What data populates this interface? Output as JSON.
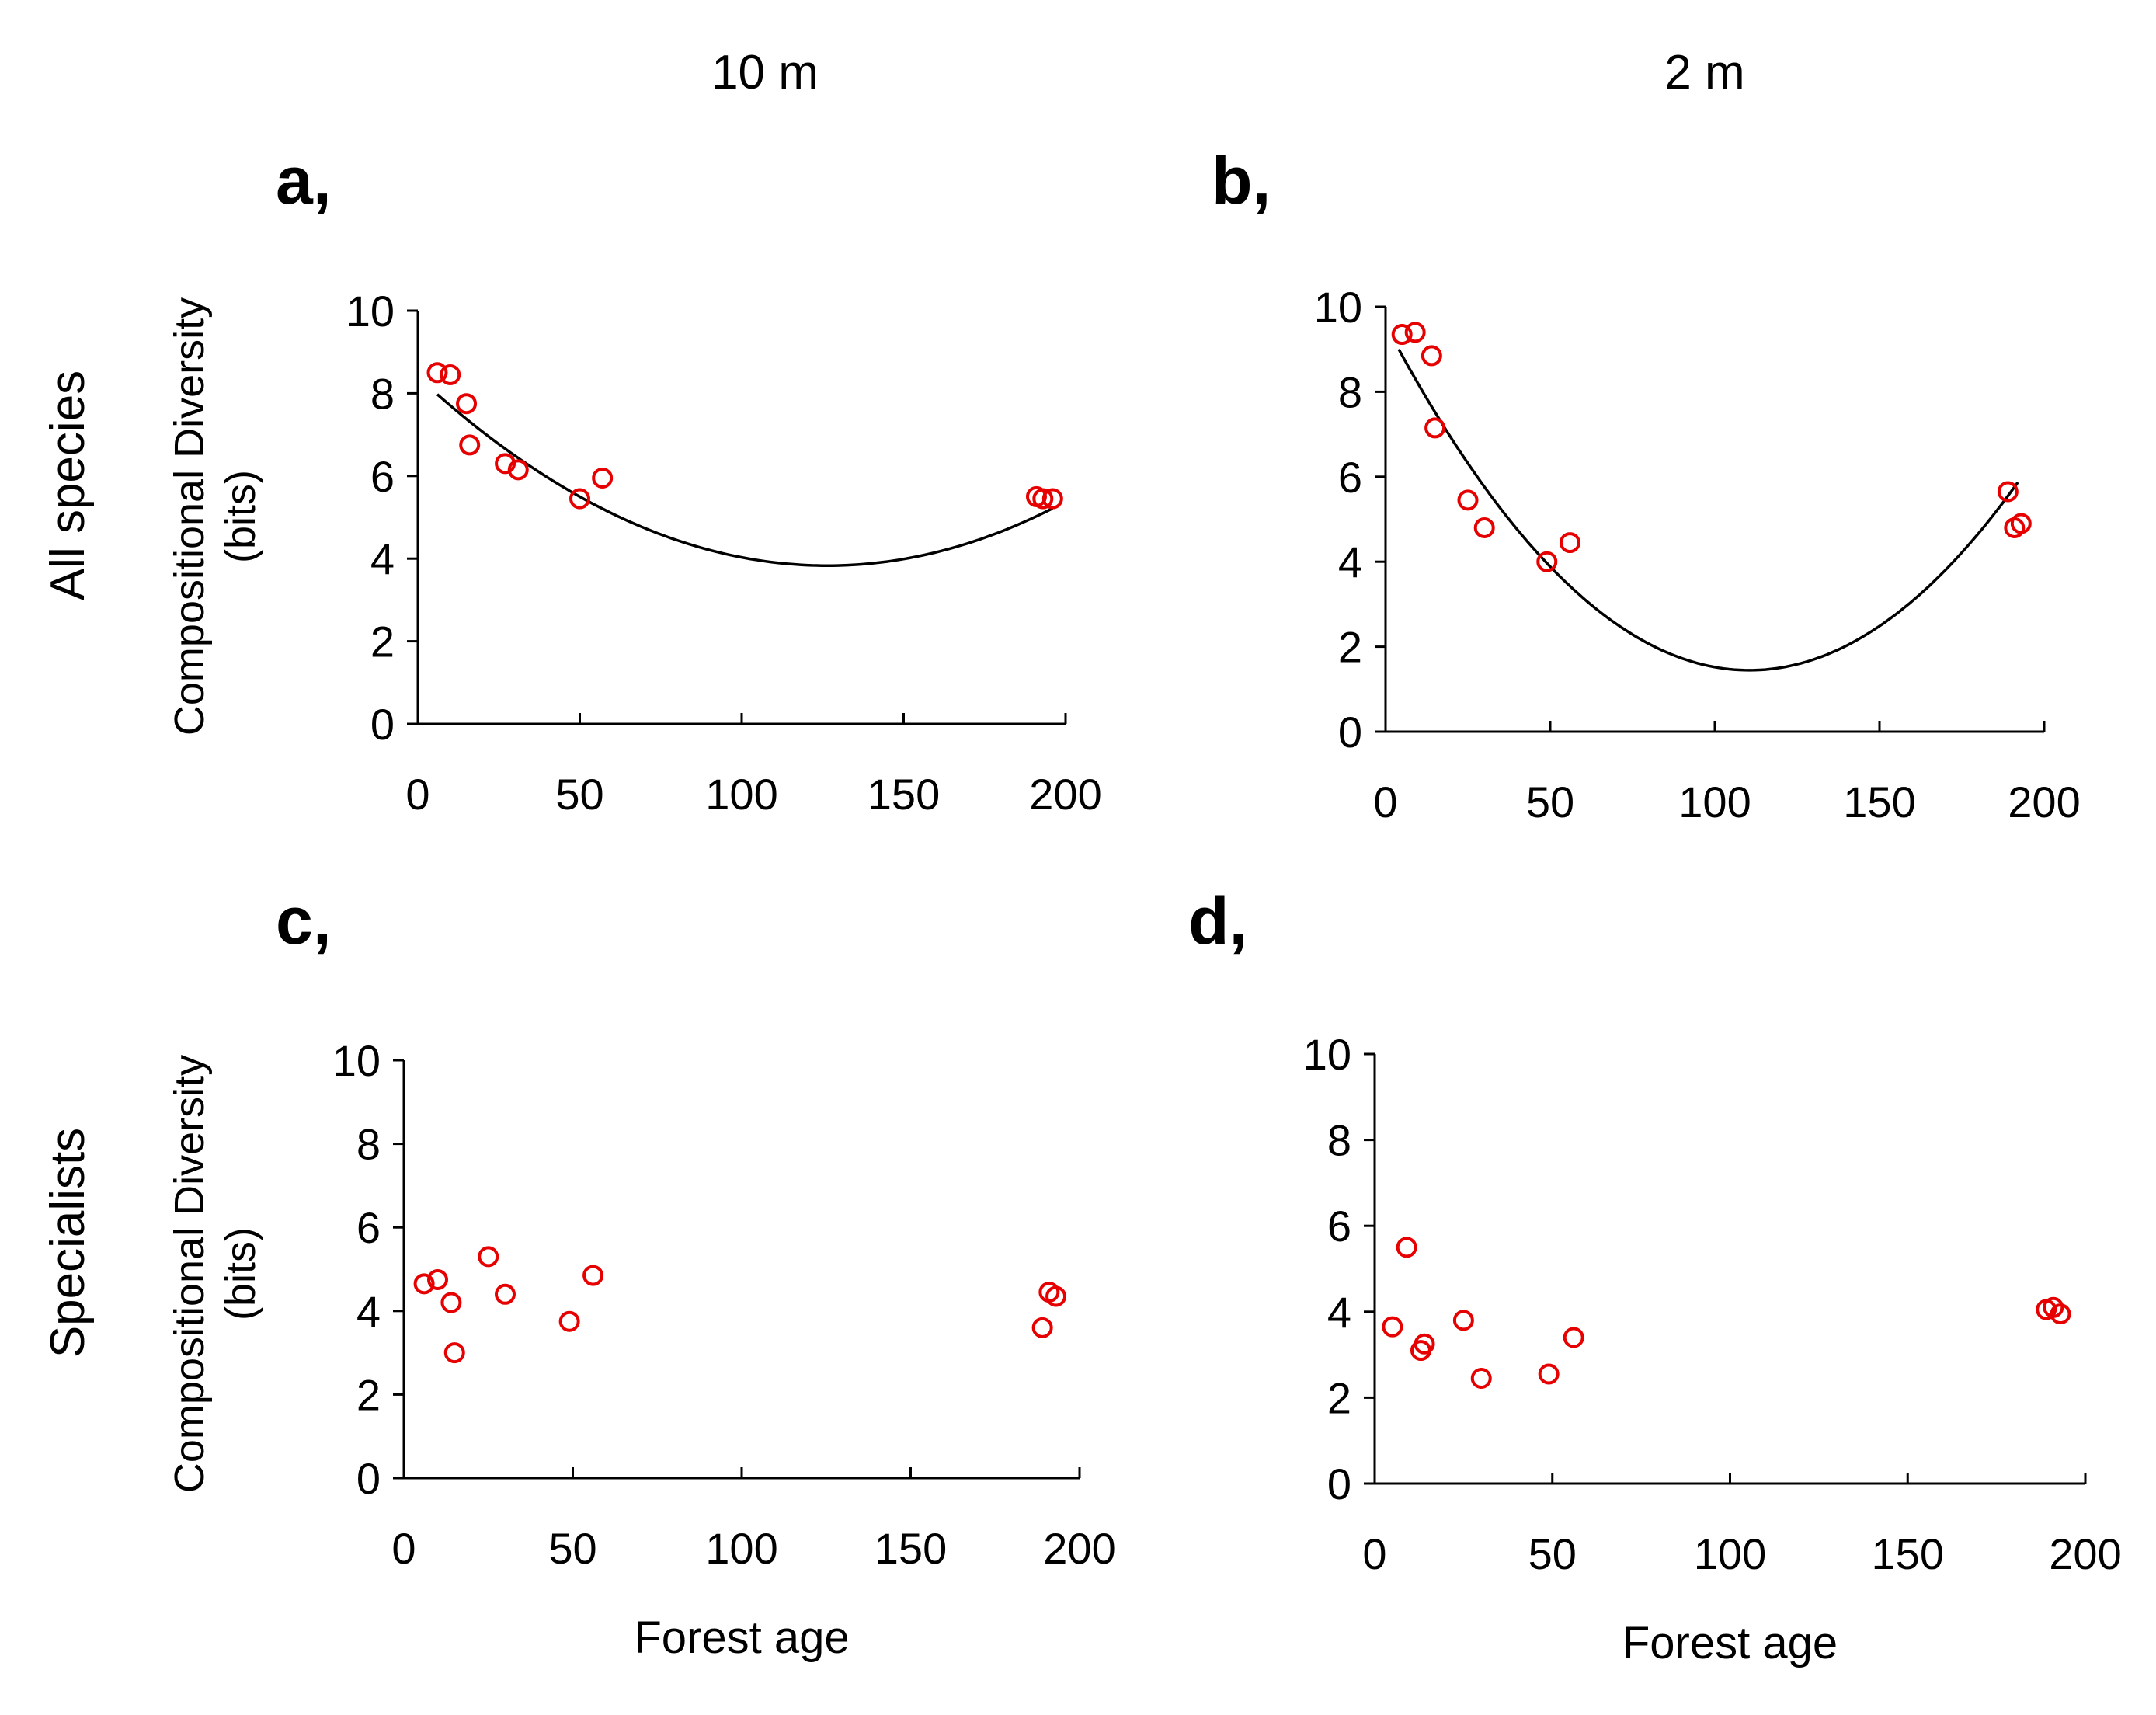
{
  "column_titles": [
    "10 m",
    "2 m"
  ],
  "row_titles": [
    "All species",
    "Specialists"
  ],
  "colors": {
    "points": "#e60000",
    "fit": "#000000",
    "axes": "#000000"
  },
  "chart_data": [
    {
      "type": "scatter",
      "panel": "a,",
      "xlabel": "",
      "ylabel": "Compositional Diversity\n(bits)",
      "xlim": [
        0,
        200
      ],
      "ylim": [
        0,
        10
      ],
      "xticks": [
        0,
        50,
        100,
        150,
        200
      ],
      "yticks": [
        0,
        2,
        4,
        6,
        8,
        10
      ],
      "points": [
        [
          6,
          8.5
        ],
        [
          10,
          8.45
        ],
        [
          15,
          7.75
        ],
        [
          16,
          6.75
        ],
        [
          27,
          6.3
        ],
        [
          31,
          6.15
        ],
        [
          50,
          5.45
        ],
        [
          57,
          5.95
        ],
        [
          191,
          5.5
        ],
        [
          193,
          5.45
        ],
        [
          196,
          5.45
        ]
      ],
      "fit": {
        "type": "quadratic",
        "a": 0.000286,
        "b": -0.0723,
        "c": 8.4,
        "x_range": [
          6,
          196
        ]
      }
    },
    {
      "type": "scatter",
      "panel": "b,",
      "xlabel": "",
      "ylabel": "",
      "xlim": [
        0,
        200
      ],
      "ylim": [
        0,
        10
      ],
      "xticks": [
        0,
        50,
        100,
        150,
        200
      ],
      "yticks": [
        0,
        2,
        4,
        6,
        8,
        10
      ],
      "points": [
        [
          5,
          9.35
        ],
        [
          9,
          9.4
        ],
        [
          14,
          8.85
        ],
        [
          15,
          7.15
        ],
        [
          25,
          5.45
        ],
        [
          30,
          4.8
        ],
        [
          49,
          4.0
        ],
        [
          56,
          4.45
        ],
        [
          189,
          5.65
        ],
        [
          191,
          4.8
        ],
        [
          193,
          4.9
        ]
      ],
      "fit": {
        "type": "quadratic",
        "a": 0.000666,
        "b": -0.1472,
        "c": 9.58,
        "x_range": [
          4,
          192
        ]
      }
    },
    {
      "type": "scatter",
      "panel": "c,",
      "xlabel": "Forest age",
      "ylabel": "Compositional Diversity\n(bits)",
      "xlim": [
        0,
        200
      ],
      "ylim": [
        0,
        10
      ],
      "xticks": [
        0,
        50,
        100,
        150,
        200
      ],
      "yticks": [
        0,
        2,
        4,
        6,
        8,
        10
      ],
      "points": [
        [
          6,
          4.65
        ],
        [
          10,
          4.75
        ],
        [
          14,
          4.2
        ],
        [
          15,
          3.0
        ],
        [
          25,
          5.3
        ],
        [
          30,
          4.4
        ],
        [
          49,
          3.75
        ],
        [
          56,
          4.85
        ],
        [
          189,
          3.6
        ],
        [
          191,
          4.45
        ],
        [
          193,
          4.35
        ]
      ]
    },
    {
      "type": "scatter",
      "panel": "d,",
      "xlabel": "Forest age",
      "ylabel": "",
      "xlim": [
        0,
        200
      ],
      "ylim": [
        0,
        10
      ],
      "xticks": [
        0,
        50,
        100,
        150,
        200
      ],
      "yticks": [
        0,
        2,
        4,
        6,
        8,
        10
      ],
      "points": [
        [
          5,
          3.65
        ],
        [
          9,
          5.5
        ],
        [
          13,
          3.1
        ],
        [
          14,
          3.25
        ],
        [
          25,
          3.8
        ],
        [
          30,
          2.45
        ],
        [
          49,
          2.55
        ],
        [
          56,
          3.4
        ],
        [
          189,
          4.05
        ],
        [
          191,
          4.1
        ],
        [
          193,
          3.95
        ]
      ]
    }
  ]
}
